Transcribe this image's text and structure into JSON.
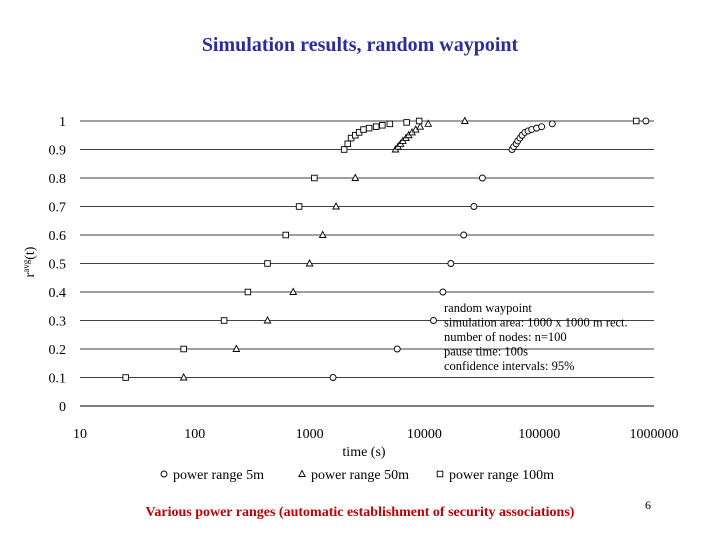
{
  "page": {
    "title": "Simulation results, random waypoint",
    "caption": "Various power ranges (automatic establishment of security associations)",
    "page_number": "6"
  },
  "chart_data": {
    "type": "scatter",
    "title": "",
    "xlabel": "time (s)",
    "ylabel": "r",
    "ylabel_sup": "avg",
    "ylabel_suffix": "(t)",
    "x_scale": "log",
    "xlim": [
      10,
      1000000
    ],
    "ylim": [
      0,
      1
    ],
    "x_ticks": [
      10,
      100,
      1000,
      10000,
      100000,
      1000000
    ],
    "x_tick_labels": [
      "10",
      "100",
      "1000",
      "10000",
      "100000",
      "1000000"
    ],
    "y_ticks": [
      0,
      0.1,
      0.2,
      0.3,
      0.4,
      0.5,
      0.6,
      0.7,
      0.8,
      0.9,
      1
    ],
    "y_tick_labels": [
      "0",
      "0.1",
      "0.2",
      "0.3",
      "0.4",
      "0.5",
      "0.6",
      "0.7",
      "0.8",
      "0.9",
      "1"
    ],
    "grid": {
      "horizontal": true,
      "vertical": false
    },
    "legend_placement": "bottom",
    "annotation": [
      "random waypoint",
      "simulation area: 1000 x 1000 m rect.",
      "number of nodes: n=100",
      "pause time: 100s",
      "confidence intervals: 95%"
    ],
    "series": [
      {
        "name": "power range 5m",
        "marker": "circle",
        "points": [
          [
            1600,
            0.1
          ],
          [
            5800,
            0.2
          ],
          [
            12000,
            0.3
          ],
          [
            14500,
            0.4
          ],
          [
            17000,
            0.5
          ],
          [
            22000,
            0.6
          ],
          [
            27000,
            0.7
          ],
          [
            32000,
            0.8
          ],
          [
            58000,
            0.9
          ],
          [
            60000,
            0.91
          ],
          [
            63000,
            0.92
          ],
          [
            65000,
            0.93
          ],
          [
            68000,
            0.94
          ],
          [
            71000,
            0.95
          ],
          [
            75000,
            0.96
          ],
          [
            80000,
            0.965
          ],
          [
            86000,
            0.97
          ],
          [
            95000,
            0.975
          ],
          [
            105000,
            0.98
          ],
          [
            130000,
            0.99
          ],
          [
            850000,
            1.0
          ]
        ]
      },
      {
        "name": "power range 50m",
        "marker": "triangle",
        "points": [
          [
            80,
            0.1
          ],
          [
            230,
            0.2
          ],
          [
            430,
            0.3
          ],
          [
            720,
            0.4
          ],
          [
            1000,
            0.5
          ],
          [
            1300,
            0.6
          ],
          [
            1700,
            0.7
          ],
          [
            2500,
            0.8
          ],
          [
            5600,
            0.9
          ],
          [
            5900,
            0.91
          ],
          [
            6200,
            0.92
          ],
          [
            6500,
            0.93
          ],
          [
            6900,
            0.94
          ],
          [
            7300,
            0.95
          ],
          [
            7800,
            0.96
          ],
          [
            8400,
            0.97
          ],
          [
            9200,
            0.98
          ],
          [
            10800,
            0.99
          ],
          [
            22500,
            1.0
          ]
        ]
      },
      {
        "name": "power range 100m",
        "marker": "square",
        "points": [
          [
            25,
            0.1
          ],
          [
            80,
            0.2
          ],
          [
            180,
            0.3
          ],
          [
            290,
            0.4
          ],
          [
            430,
            0.5
          ],
          [
            620,
            0.6
          ],
          [
            810,
            0.7
          ],
          [
            1100,
            0.8
          ],
          [
            2000,
            0.9
          ],
          [
            2150,
            0.92
          ],
          [
            2300,
            0.94
          ],
          [
            2500,
            0.95
          ],
          [
            2700,
            0.96
          ],
          [
            2950,
            0.97
          ],
          [
            3300,
            0.975
          ],
          [
            3800,
            0.98
          ],
          [
            4300,
            0.985
          ],
          [
            5000,
            0.99
          ],
          [
            7000,
            0.995
          ],
          [
            9000,
            1.0
          ],
          [
            700000,
            1.0
          ]
        ]
      }
    ]
  }
}
